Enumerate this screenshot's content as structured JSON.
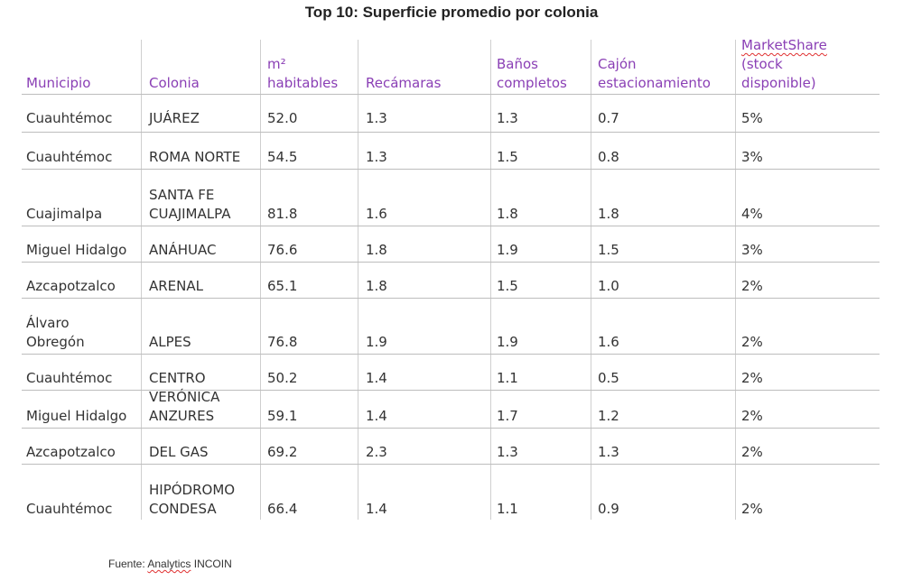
{
  "title": "Top 10: Superficie promedio por colonia",
  "columns": [
    [
      "Municipio"
    ],
    [
      "Colonia"
    ],
    [
      "m²",
      "habitables"
    ],
    [
      "Recámaras"
    ],
    [
      "Baños",
      "completos"
    ],
    [
      "Cajón",
      "estacionamiento"
    ],
    [
      "MarketShare",
      "(stock",
      "disponible)"
    ]
  ],
  "rows": [
    [
      [
        "Cuauhtémoc"
      ],
      [
        "JUÁREZ"
      ],
      [
        "52.0"
      ],
      [
        "1.3"
      ],
      [
        "1.3"
      ],
      [
        "0.7"
      ],
      [
        "5%"
      ]
    ],
    [
      [
        "Cuauhtémoc"
      ],
      [
        "ROMA NORTE"
      ],
      [
        "54.5"
      ],
      [
        "1.3"
      ],
      [
        "1.5"
      ],
      [
        "0.8"
      ],
      [
        "3%"
      ]
    ],
    [
      [
        "Cuajimalpa"
      ],
      [
        "SANTA FE",
        "CUAJIMALPA"
      ],
      [
        "81.8"
      ],
      [
        "1.6"
      ],
      [
        "1.8"
      ],
      [
        "1.8"
      ],
      [
        "4%"
      ]
    ],
    [
      [
        "Miguel Hidalgo"
      ],
      [
        "ANÁHUAC"
      ],
      [
        "76.6"
      ],
      [
        "1.8"
      ],
      [
        "1.9"
      ],
      [
        "1.5"
      ],
      [
        "3%"
      ]
    ],
    [
      [
        "Azcapotzalco"
      ],
      [
        "ARENAL"
      ],
      [
        "65.1"
      ],
      [
        "1.8"
      ],
      [
        "1.5"
      ],
      [
        "1.0"
      ],
      [
        "2%"
      ]
    ],
    [
      [
        "Álvaro",
        "Obregón"
      ],
      [
        "ALPES"
      ],
      [
        "76.8"
      ],
      [
        "1.9"
      ],
      [
        "1.9"
      ],
      [
        "1.6"
      ],
      [
        "2%"
      ]
    ],
    [
      [
        "Cuauhtémoc"
      ],
      [
        "CENTRO"
      ],
      [
        "50.2"
      ],
      [
        "1.4"
      ],
      [
        "1.1"
      ],
      [
        "0.5"
      ],
      [
        "2%"
      ]
    ],
    [
      [
        "Miguel Hidalgo"
      ],
      [
        "VERÓNICA",
        "ANZURES"
      ],
      [
        "59.1"
      ],
      [
        "1.4"
      ],
      [
        "1.7"
      ],
      [
        "1.2"
      ],
      [
        "2%"
      ]
    ],
    [
      [
        "Azcapotzalco"
      ],
      [
        "DEL GAS"
      ],
      [
        "69.2"
      ],
      [
        "2.3"
      ],
      [
        "1.3"
      ],
      [
        "1.3"
      ],
      [
        "2%"
      ]
    ],
    [
      [
        "Cuauhtémoc"
      ],
      [
        "HIPÓDROMO",
        "CONDESA"
      ],
      [
        "66.4"
      ],
      [
        "1.4"
      ],
      [
        "1.1"
      ],
      [
        "0.9"
      ],
      [
        "2%"
      ]
    ]
  ],
  "source": {
    "prefix": "Fuente: ",
    "brand": "Analytics",
    "suffix": " INCOIN"
  },
  "colors": {
    "header_text": "#8a3fb5",
    "body_text": "#333333",
    "rule": "#bdbdbd",
    "spellcheck_underline": "#e03030"
  }
}
